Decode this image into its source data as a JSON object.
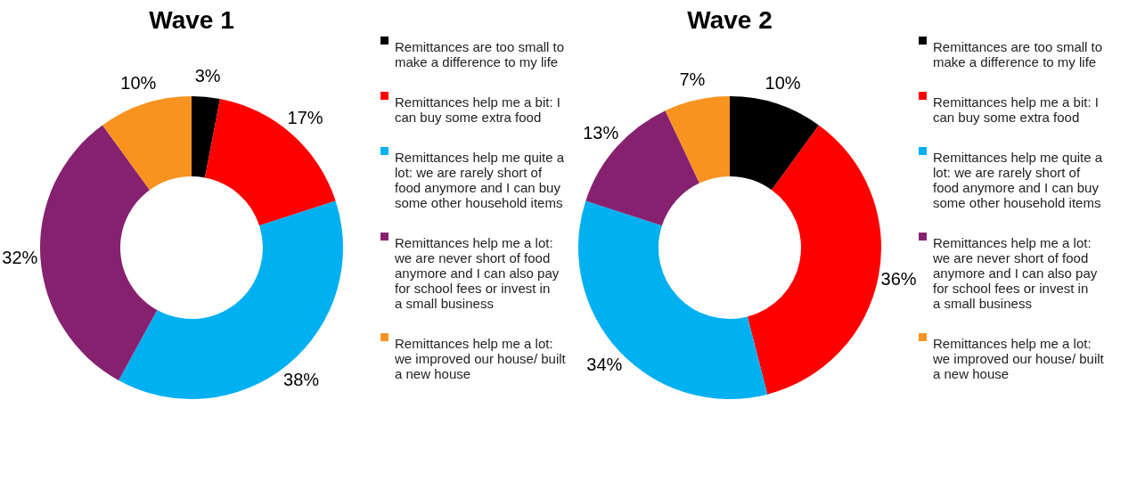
{
  "chart_data": [
    {
      "type": "donut",
      "title": "Wave 1",
      "categories": [
        "Remittances are too small to make a difference to my life",
        "Remittances help me a bit: I can buy some extra food",
        "Remittances help me quite a lot: we are rarely short of food anymore and I can buy some other household items",
        "Remittances help me a lot: we are never short of food anymore and I can also pay for school fees or invest in a small business",
        "Remittances help me a lot: we improved our house/ built a new house"
      ],
      "values": [
        3,
        17,
        38,
        32,
        10
      ],
      "value_labels": [
        "3%",
        "17%",
        "38%",
        "32%",
        "10%"
      ],
      "colors": [
        "#000000",
        "#ff0000",
        "#00b0f0",
        "#862170",
        "#f7931e"
      ],
      "legend": "right"
    },
    {
      "type": "donut",
      "title": "Wave 2",
      "categories": [
        "Remittances are too small to make a difference to my life",
        "Remittances help me a bit: I can buy some extra food",
        "Remittances help me quite a lot: we are rarely short of food anymore and I can buy some other household items",
        "Remittances help me a lot: we are never short of food anymore and I can also pay for school fees or invest in a small business",
        "Remittances help me a lot: we improved our house/ built a new house"
      ],
      "values": [
        10,
        36,
        34,
        13,
        7
      ],
      "value_labels": [
        "10%",
        "36%",
        "34%",
        "13%",
        "7%"
      ],
      "colors": [
        "#000000",
        "#ff0000",
        "#00b0f0",
        "#862170",
        "#f7931e"
      ],
      "legend": "right"
    }
  ]
}
